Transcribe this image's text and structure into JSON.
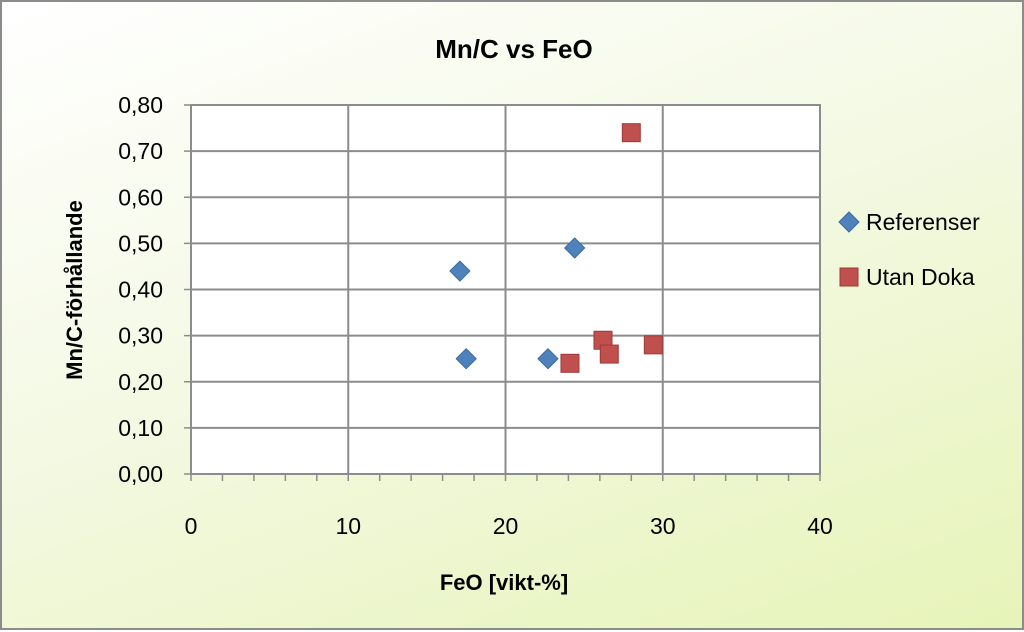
{
  "chart_data": {
    "type": "scatter",
    "title": "Mn/C vs FeO",
    "xlabel": "FeO [vikt-%]",
    "ylabel": "Mn/C-förhållande",
    "xlim": [
      0,
      40
    ],
    "ylim": [
      0,
      0.8
    ],
    "x_ticks": [
      "0",
      "10",
      "20",
      "30",
      "40"
    ],
    "y_ticks": [
      "0,00",
      "0,10",
      "0,20",
      "0,30",
      "0,40",
      "0,50",
      "0,60",
      "0,70",
      "0,80"
    ],
    "grid": true,
    "legend_position": "right",
    "series": [
      {
        "name": "Referenser",
        "marker": "diamond",
        "color": "#4f81bd",
        "points": [
          {
            "x": 17.1,
            "y": 0.44
          },
          {
            "x": 17.5,
            "y": 0.25
          },
          {
            "x": 22.7,
            "y": 0.25
          },
          {
            "x": 24.4,
            "y": 0.49
          }
        ]
      },
      {
        "name": "Utan Doka",
        "marker": "square",
        "color": "#c0504d",
        "points": [
          {
            "x": 24.1,
            "y": 0.24
          },
          {
            "x": 26.2,
            "y": 0.29
          },
          {
            "x": 26.6,
            "y": 0.26
          },
          {
            "x": 28.0,
            "y": 0.74
          },
          {
            "x": 29.4,
            "y": 0.28
          }
        ]
      }
    ]
  }
}
